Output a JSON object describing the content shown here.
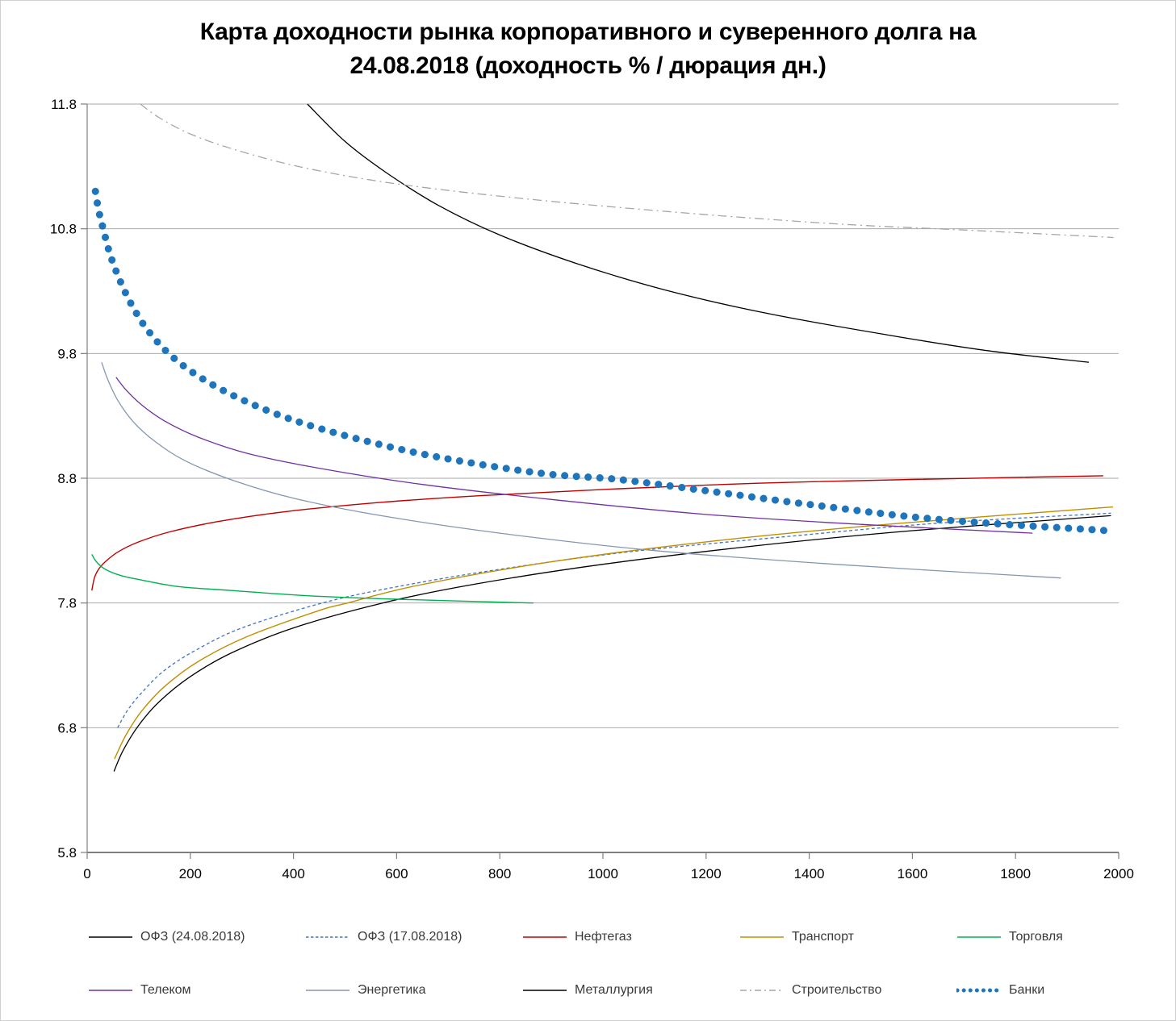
{
  "chart_data": {
    "type": "line",
    "title": "Карта доходности рынка корпоративного и суверенного долга на 24.08.2018 (доходность % / дюрация дн.)",
    "title_lines": [
      "Карта доходности рынка корпоративного и суверенного долга на",
      "24.08.2018 (доходность % / дюрация дн.)"
    ],
    "xlabel": "дюрация дн.",
    "ylabel": "доходность %",
    "xlim": [
      0,
      2000
    ],
    "ylim": [
      5.8,
      11.8
    ],
    "x_ticks": [
      0,
      200,
      400,
      600,
      800,
      1000,
      1200,
      1400,
      1600,
      1800,
      2000
    ],
    "y_ticks": [
      5.8,
      6.8,
      7.8,
      8.8,
      9.8,
      10.8,
      11.8
    ],
    "grid": "horizontal-only",
    "grid_color": "#ababab",
    "axis_color": "#7f7f7f",
    "legend_position": "bottom-two-rows",
    "series": [
      {
        "id": "ofz24",
        "name": "ОФЗ (24.08.2018)",
        "color": "#000000",
        "style": "solid",
        "width": 1.3,
        "legend_row": 1,
        "points": [
          [
            52,
            6.45
          ],
          [
            70,
            6.62
          ],
          [
            100,
            6.82
          ],
          [
            140,
            7.01
          ],
          [
            200,
            7.21
          ],
          [
            280,
            7.4
          ],
          [
            400,
            7.6
          ],
          [
            573,
            7.8
          ],
          [
            750,
            7.95
          ],
          [
            1000,
            8.11
          ],
          [
            1300,
            8.26
          ],
          [
            1600,
            8.38
          ],
          [
            1985,
            8.5
          ]
        ]
      },
      {
        "id": "ofz17",
        "name": "ОФЗ (17.08.2018)",
        "color": "#4472c4",
        "style": "dashed",
        "width": 1.3,
        "legend_row": 1,
        "points": [
          [
            59,
            6.8
          ],
          [
            80,
            6.95
          ],
          [
            110,
            7.1
          ],
          [
            150,
            7.26
          ],
          [
            210,
            7.42
          ],
          [
            300,
            7.6
          ],
          [
            456,
            7.8
          ],
          [
            600,
            7.93
          ],
          [
            800,
            8.07
          ],
          [
            1050,
            8.21
          ],
          [
            1350,
            8.33
          ],
          [
            1650,
            8.44
          ],
          [
            1985,
            8.52
          ]
        ]
      },
      {
        "id": "neftegaz",
        "name": "Нефтегаз",
        "color": "#c00000",
        "style": "solid",
        "width": 1.4,
        "legend_row": 1,
        "points": [
          [
            9,
            7.9
          ],
          [
            14,
            8.0
          ],
          [
            22,
            8.07
          ],
          [
            35,
            8.13
          ],
          [
            60,
            8.21
          ],
          [
            100,
            8.29
          ],
          [
            160,
            8.37
          ],
          [
            250,
            8.45
          ],
          [
            380,
            8.53
          ],
          [
            550,
            8.6
          ],
          [
            760,
            8.66
          ],
          [
            1000,
            8.71
          ],
          [
            1300,
            8.76
          ],
          [
            1600,
            8.79
          ],
          [
            1970,
            8.82
          ]
        ]
      },
      {
        "id": "transport",
        "name": "Транспорт",
        "color": "#bf8f00",
        "style": "solid",
        "width": 1.4,
        "legend_row": 1,
        "points": [
          [
            53,
            6.55
          ],
          [
            75,
            6.74
          ],
          [
            105,
            6.93
          ],
          [
            150,
            7.13
          ],
          [
            215,
            7.33
          ],
          [
            310,
            7.53
          ],
          [
            450,
            7.74
          ],
          [
            505,
            7.8
          ],
          [
            640,
            7.94
          ],
          [
            900,
            8.13
          ],
          [
            1200,
            8.29
          ],
          [
            1550,
            8.43
          ],
          [
            1989,
            8.57
          ]
        ]
      },
      {
        "id": "torgovlya",
        "name": "Торговля",
        "color": "#00b050",
        "style": "solid",
        "width": 1.4,
        "legend_row": 1,
        "points": [
          [
            9,
            8.19
          ],
          [
            18,
            8.13
          ],
          [
            35,
            8.07
          ],
          [
            65,
            8.02
          ],
          [
            110,
            7.98
          ],
          [
            180,
            7.93
          ],
          [
            280,
            7.9
          ],
          [
            420,
            7.86
          ],
          [
            600,
            7.83
          ],
          [
            865,
            7.8
          ]
        ]
      },
      {
        "id": "telekom",
        "name": "Телеком",
        "color": "#7030a0",
        "style": "solid",
        "width": 1.3,
        "legend_row": 2,
        "points": [
          [
            56,
            9.61
          ],
          [
            75,
            9.51
          ],
          [
            105,
            9.39
          ],
          [
            150,
            9.26
          ],
          [
            215,
            9.13
          ],
          [
            310,
            9.0
          ],
          [
            450,
            8.88
          ],
          [
            650,
            8.75
          ],
          [
            900,
            8.63
          ],
          [
            1200,
            8.51
          ],
          [
            1500,
            8.43
          ],
          [
            1833,
            8.36
          ]
        ]
      },
      {
        "id": "energetika",
        "name": "Энергетика",
        "color": "#8497b0",
        "style": "solid",
        "width": 1.3,
        "legend_row": 2,
        "points": [
          [
            28,
            9.73
          ],
          [
            40,
            9.59
          ],
          [
            60,
            9.42
          ],
          [
            90,
            9.25
          ],
          [
            130,
            9.1
          ],
          [
            190,
            8.94
          ],
          [
            285,
            8.78
          ],
          [
            400,
            8.64
          ],
          [
            570,
            8.5
          ],
          [
            800,
            8.36
          ],
          [
            1100,
            8.22
          ],
          [
            1450,
            8.11
          ],
          [
            1888,
            8.0
          ]
        ]
      },
      {
        "id": "metallurgiya",
        "name": "Металлургия",
        "color": "#000000",
        "style": "solid",
        "width": 1.3,
        "legend_row": 2,
        "points": [
          [
            427,
            11.8
          ],
          [
            500,
            11.5
          ],
          [
            580,
            11.25
          ],
          [
            680,
            10.99
          ],
          [
            800,
            10.75
          ],
          [
            950,
            10.52
          ],
          [
            1120,
            10.31
          ],
          [
            1320,
            10.12
          ],
          [
            1550,
            9.95
          ],
          [
            1750,
            9.82
          ],
          [
            1942,
            9.73
          ]
        ]
      },
      {
        "id": "stroitelstvo",
        "name": "Строительство",
        "color": "#a6a6a6",
        "style": "dashdot",
        "width": 1.3,
        "legend_row": 2,
        "points": [
          [
            103,
            11.8
          ],
          [
            140,
            11.69
          ],
          [
            200,
            11.56
          ],
          [
            290,
            11.43
          ],
          [
            420,
            11.29
          ],
          [
            600,
            11.16
          ],
          [
            850,
            11.04
          ],
          [
            1150,
            10.93
          ],
          [
            1450,
            10.84
          ],
          [
            1700,
            10.79
          ],
          [
            1990,
            10.73
          ]
        ]
      },
      {
        "id": "banki",
        "name": "Банки",
        "color": "#1f75bb",
        "style": "dots",
        "width": 9,
        "legend_row": 2,
        "points": [
          [
            16,
            11.1
          ],
          [
            22,
            10.95
          ],
          [
            31,
            10.8
          ],
          [
            44,
            10.6
          ],
          [
            62,
            10.4
          ],
          [
            85,
            10.2
          ],
          [
            115,
            10.0
          ],
          [
            158,
            9.8
          ],
          [
            215,
            9.62
          ],
          [
            290,
            9.45
          ],
          [
            390,
            9.28
          ],
          [
            520,
            9.12
          ],
          [
            680,
            8.97
          ],
          [
            880,
            8.84
          ],
          [
            1030,
            8.79
          ],
          [
            1200,
            8.7
          ],
          [
            1400,
            8.59
          ],
          [
            1650,
            8.47
          ],
          [
            1978,
            8.38
          ]
        ]
      }
    ]
  }
}
